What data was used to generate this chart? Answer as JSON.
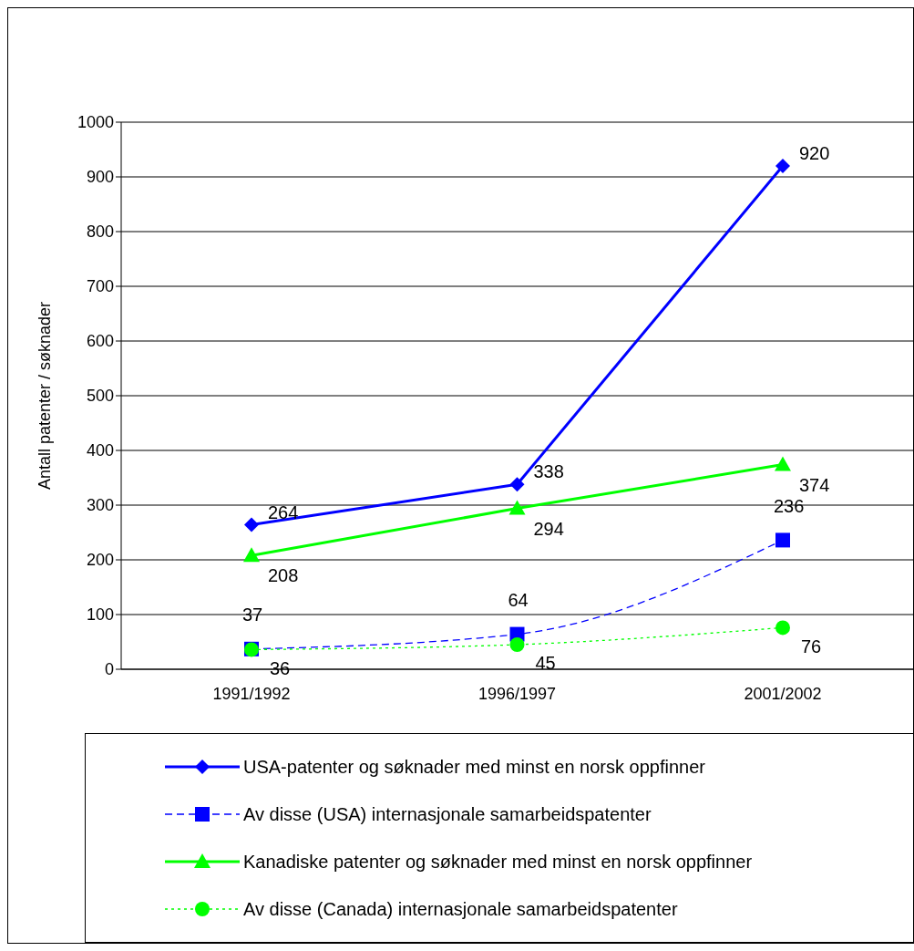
{
  "chart_data": {
    "type": "line",
    "ylabel": "Antall patenter / søknader",
    "categories": [
      "1991/1992",
      "1996/1997",
      "2001/2002"
    ],
    "series": [
      {
        "name": "USA-patenter og søknader med minst en norsk oppfinner",
        "color": "#0000ff",
        "values": [
          264,
          338,
          920
        ],
        "marker": "diamond",
        "line_style": "solid"
      },
      {
        "name": "Av disse (USA) internasjonale samarbeidspatenter",
        "color": "#0000ff",
        "values": [
          37,
          64,
          236
        ],
        "marker": "square",
        "line_style": "dashed"
      },
      {
        "name": "Kanadiske patenter og søknader med minst en norsk oppfinner",
        "color": "#00ff00",
        "values": [
          208,
          294,
          374
        ],
        "marker": "triangle",
        "line_style": "solid"
      },
      {
        "name": "Av disse (Canada) internasjonale samarbeidspatenter",
        "color": "#00ff00",
        "values": [
          36,
          45,
          76
        ],
        "marker": "circle",
        "line_style": "dotted"
      }
    ],
    "ylim": [
      0,
      1000
    ],
    "yticks": [
      0,
      100,
      200,
      300,
      400,
      500,
      600,
      700,
      800,
      900,
      1000
    ],
    "grid": "y",
    "legend": "bottom",
    "data_labels": true
  }
}
